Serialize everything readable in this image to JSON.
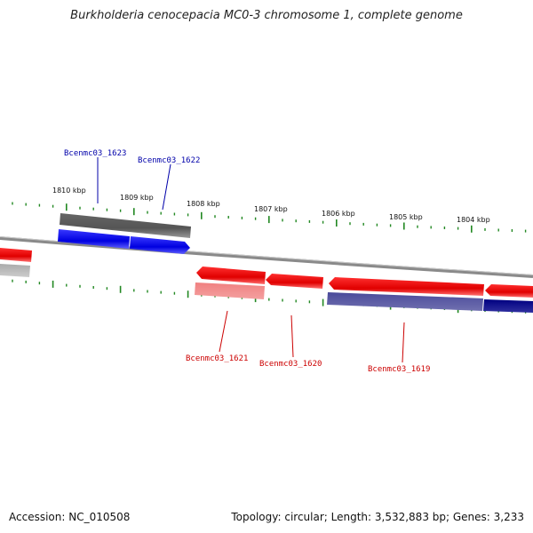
{
  "title": "Burkholderia cenocepacia MC0-3 chromosome 1, complete genome",
  "footer": {
    "accession": "Accession: NC_010508",
    "summary": "Topology: circular; Length: 3,532,883 bp; Genes: 3,233"
  },
  "scale_labels": [
    "1810 kbp",
    "1809 kbp",
    "1808 kbp",
    "1807 kbp",
    "1806 kbp",
    "1805 kbp",
    "1804 kbp"
  ],
  "gene_labels": {
    "bcenmc03_1623": "Bcenmc03_1623",
    "bcenmc03_1622": "Bcenmc03_1622",
    "bcenmc03_1621": "Bcenmc03_1621",
    "bcenmc03_1620": "Bcenmc03_1620",
    "bcenmc03_1619": "Bcenmc03_1619"
  },
  "colors": {
    "forward_label": "#0000aa",
    "reverse_label": "#cc0000",
    "cds_forward": "#0000ee",
    "cds_reverse": "#ee0000",
    "gene_forward": "#555555",
    "gene_reverse": "#3a3a8a",
    "tick": "#228822",
    "backbone": "#888888"
  }
}
